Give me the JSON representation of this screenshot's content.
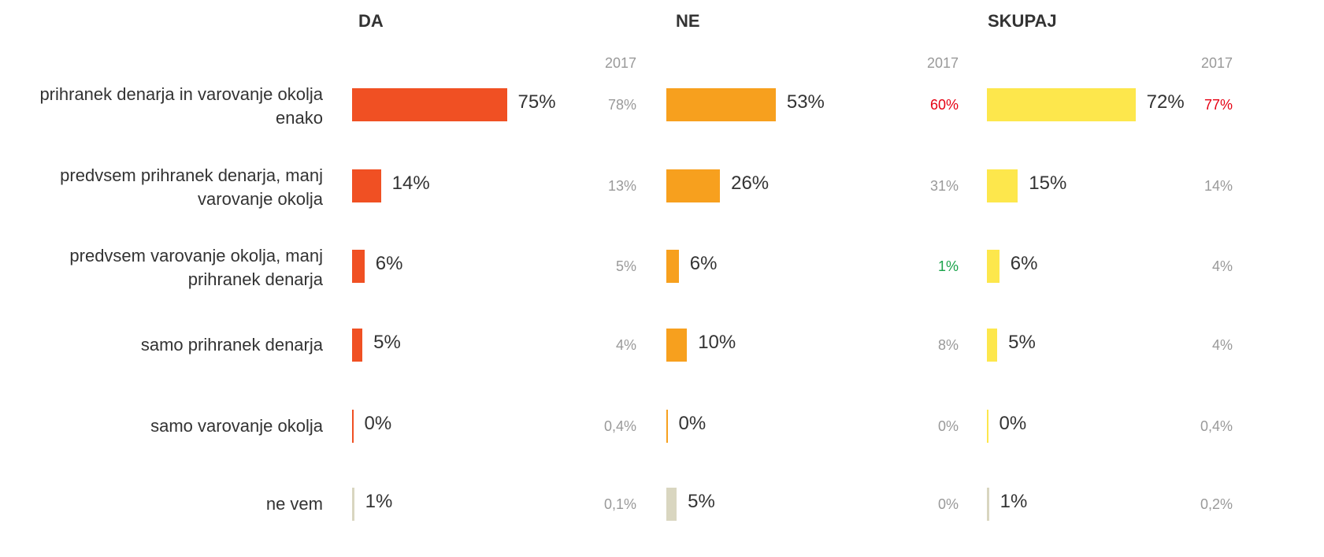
{
  "chart_data": [
    {
      "type": "bar",
      "title": "DA",
      "categories": [
        "prihranek denarja in varovanje okolja enako",
        "predvsem prihranek denarja, manj varovanje okolja",
        "predvsem varovanje okolja, manj prihranek denarja",
        "samo prihranek denarja",
        "samo varovanje okolja",
        "ne vem"
      ],
      "values": [
        75,
        14,
        6,
        5,
        0,
        1
      ],
      "value_labels": [
        "75%",
        "14%",
        "6%",
        "5%",
        "0%",
        "1%"
      ],
      "colors": [
        "#f05023",
        "#f05023",
        "#f05023",
        "#f05023",
        "#f05023",
        "#d9d6c0"
      ],
      "xlim": [
        0,
        100
      ],
      "comparison": {
        "label": "2017",
        "values": [
          78,
          13,
          5,
          4,
          0.4,
          0.1
        ],
        "value_labels": [
          "78%",
          "13%",
          "5%",
          "4%",
          "0,4%",
          "0,1%"
        ],
        "colors": [
          "#999999",
          "#999999",
          "#999999",
          "#999999",
          "#999999",
          "#999999"
        ]
      }
    },
    {
      "type": "bar",
      "title": "NE",
      "values": [
        53,
        26,
        6,
        10,
        0,
        5
      ],
      "value_labels": [
        "53%",
        "26%",
        "6%",
        "10%",
        "0%",
        "5%"
      ],
      "colors": [
        "#f7a01e",
        "#f7a01e",
        "#f7a01e",
        "#f7a01e",
        "#f7a01e",
        "#d9d6c0"
      ],
      "xlim": [
        0,
        100
      ],
      "comparison": {
        "label": "2017",
        "values": [
          60,
          31,
          1,
          8,
          0,
          0
        ],
        "value_labels": [
          "60%",
          "31%",
          "1%",
          "8%",
          "0%",
          "0%"
        ],
        "colors": [
          "#e60012",
          "#999999",
          "#1aa34a",
          "#999999",
          "#999999",
          "#999999"
        ]
      }
    },
    {
      "type": "bar",
      "title": "SKUPAJ",
      "values": [
        72,
        15,
        6,
        5,
        0,
        1
      ],
      "value_labels": [
        "72%",
        "15%",
        "6%",
        "5%",
        "0%",
        "1%"
      ],
      "colors": [
        "#fde74c",
        "#fde74c",
        "#fde74c",
        "#fde74c",
        "#fde74c",
        "#d9d6c0"
      ],
      "xlim": [
        0,
        100
      ],
      "comparison": {
        "label": "2017",
        "values": [
          77,
          14,
          4,
          4,
          0.4,
          0.2
        ],
        "value_labels": [
          "77%",
          "14%",
          "4%",
          "4%",
          "0,4%",
          "0,2%"
        ],
        "colors": [
          "#e60012",
          "#999999",
          "#999999",
          "#999999",
          "#999999",
          "#999999"
        ]
      }
    }
  ]
}
